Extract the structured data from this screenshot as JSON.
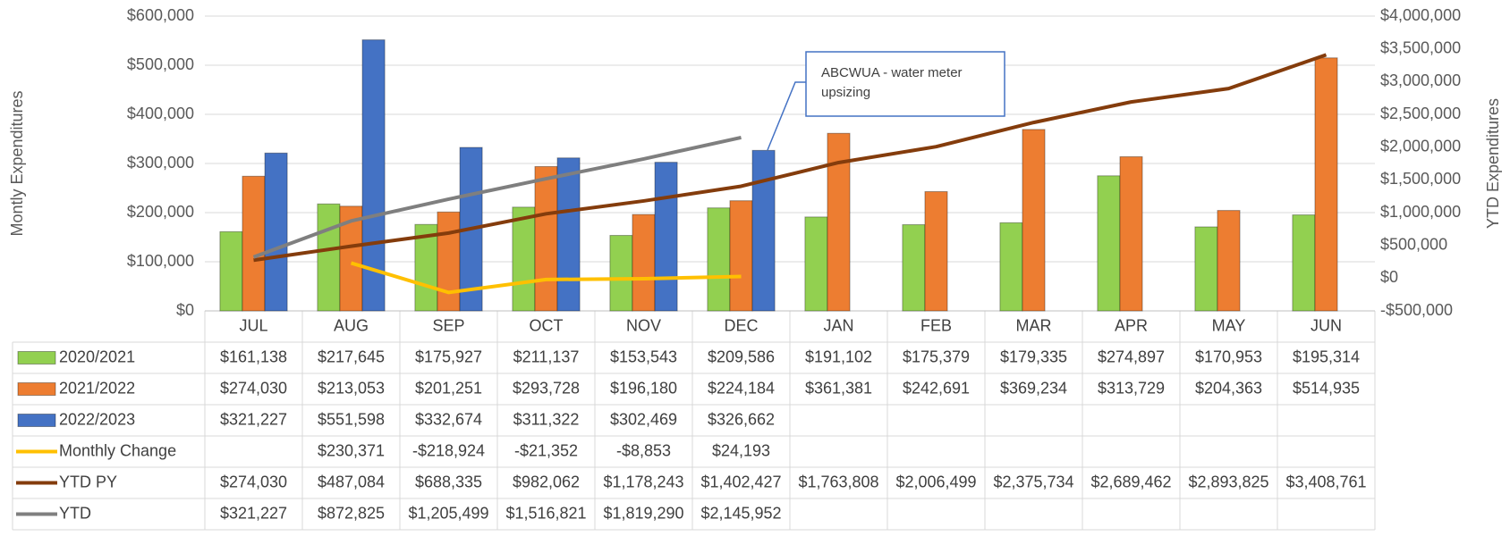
{
  "chart_data": {
    "type": "bar",
    "categories": [
      "JUL",
      "AUG",
      "SEP",
      "OCT",
      "NOV",
      "DEC",
      "JAN",
      "FEB",
      "MAR",
      "APR",
      "MAY",
      "JUN"
    ],
    "y_label": "Montly Expenditures",
    "y2_label": "YTD Expenditures",
    "annotation": "ABCWUA - water meter upsizing",
    "ylim": [
      0,
      600000
    ],
    "yticks": [
      {
        "value": 0,
        "label": "$0"
      },
      {
        "value": 100000,
        "label": "$100,000"
      },
      {
        "value": 200000,
        "label": "$200,000"
      },
      {
        "value": 300000,
        "label": "$300,000"
      },
      {
        "value": 400000,
        "label": "$400,000"
      },
      {
        "value": 500000,
        "label": "$500,000"
      },
      {
        "value": 600000,
        "label": "$600,000"
      }
    ],
    "y2lim": [
      -500000,
      4000000
    ],
    "y2ticks": [
      {
        "value": -500000,
        "label": "-$500,000"
      },
      {
        "value": 0,
        "label": "$0"
      },
      {
        "value": 500000,
        "label": "$500,000"
      },
      {
        "value": 1000000,
        "label": "$1,000,000"
      },
      {
        "value": 1500000,
        "label": "$1,500,000"
      },
      {
        "value": 2000000,
        "label": "$2,000,000"
      },
      {
        "value": 2500000,
        "label": "$2,500,000"
      },
      {
        "value": 3000000,
        "label": "$3,000,000"
      },
      {
        "value": 3500000,
        "label": "$3,500,000"
      },
      {
        "value": 4000000,
        "label": "$4,000,000"
      }
    ],
    "grid": true,
    "series": [
      {
        "name": "2020/2021",
        "type": "bar",
        "color": "#92d050",
        "values": [
          161138,
          217645,
          175927,
          211137,
          153543,
          209586,
          191102,
          175379,
          179335,
          274897,
          170953,
          195314
        ],
        "value_labels": [
          "$161,138",
          "$217,645",
          "$175,927",
          "$211,137",
          "$153,543",
          "$209,586",
          "$191,102",
          "$175,379",
          "$179,335",
          "$274,897",
          "$170,953",
          "$195,314"
        ]
      },
      {
        "name": "2021/2022",
        "type": "bar",
        "color": "#ed7d31",
        "values": [
          274030,
          213053,
          201251,
          293728,
          196180,
          224184,
          361381,
          242691,
          369234,
          313729,
          204363,
          514935
        ],
        "value_labels": [
          "$274,030",
          "$213,053",
          "$201,251",
          "$293,728",
          "$196,180",
          "$224,184",
          "$361,381",
          "$242,691",
          "$369,234",
          "$313,729",
          "$204,363",
          "$514,935"
        ]
      },
      {
        "name": "2022/2023",
        "type": "bar",
        "color": "#4472c4",
        "values": [
          321227,
          551598,
          332674,
          311322,
          302469,
          326662,
          null,
          null,
          null,
          null,
          null,
          null
        ],
        "value_labels": [
          "$321,227",
          "$551,598",
          "$332,674",
          "$311,322",
          "$302,469",
          "$326,662",
          null,
          null,
          null,
          null,
          null,
          null
        ]
      },
      {
        "name": "Monthly Change",
        "type": "line",
        "axis": "y2",
        "color": "#ffc000",
        "values": [
          null,
          230371,
          -218924,
          -21352,
          -8853,
          24193,
          null,
          null,
          null,
          null,
          null,
          null
        ],
        "value_labels": [
          null,
          "$230,371",
          "-$218,924",
          "-$21,352",
          "-$8,853",
          "$24,193",
          null,
          null,
          null,
          null,
          null,
          null
        ]
      },
      {
        "name": "YTD PY",
        "type": "line",
        "axis": "y2",
        "color": "#843c0c",
        "values": [
          274030,
          487084,
          688335,
          982062,
          1178243,
          1402427,
          1763808,
          2006499,
          2375734,
          2689462,
          2893825,
          3408761
        ],
        "value_labels": [
          "$274,030",
          "$487,084",
          "$688,335",
          "$982,062",
          "$1,178,243",
          "$1,402,427",
          "$1,763,808",
          "$2,006,499",
          "$2,375,734",
          "$2,689,462",
          "$2,893,825",
          "$3,408,761"
        ]
      },
      {
        "name": "YTD",
        "type": "line",
        "axis": "y2",
        "color": "#7f7f7f",
        "values": [
          321227,
          872825,
          1205499,
          1516821,
          1819290,
          2145952,
          null,
          null,
          null,
          null,
          null,
          null
        ],
        "value_labels": [
          "$321,227",
          "$872,825",
          "$1,205,499",
          "$1,516,821",
          "$1,819,290",
          "$2,145,952",
          null,
          null,
          null,
          null,
          null,
          null
        ]
      }
    ]
  }
}
